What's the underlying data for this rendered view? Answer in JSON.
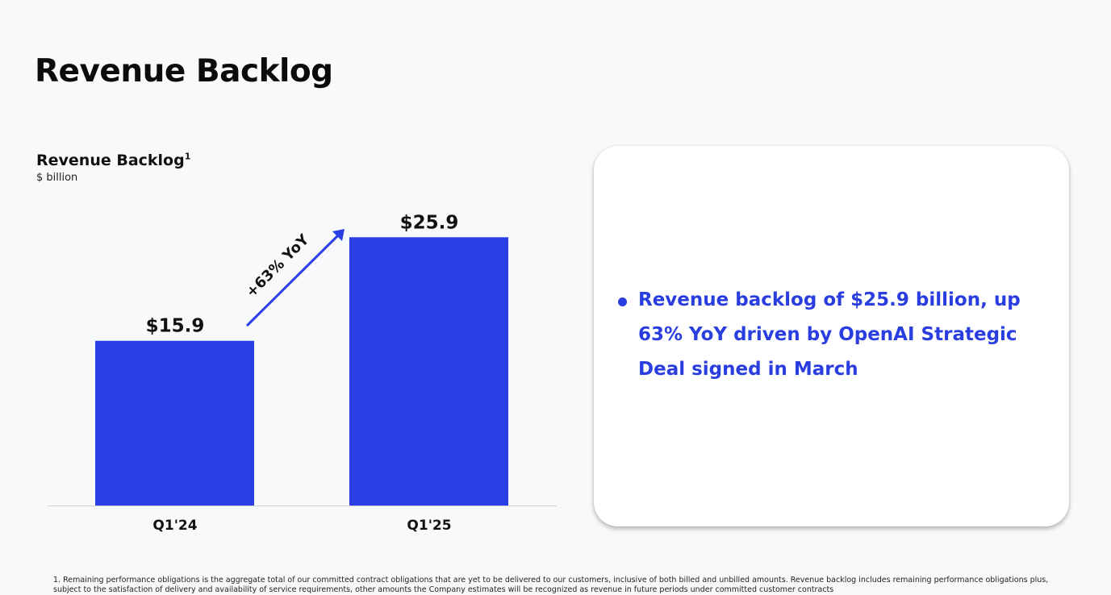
{
  "page": {
    "title": "Revenue Backlog"
  },
  "chart_data": {
    "type": "bar",
    "title": "Revenue Backlog",
    "title_footnote_marker": "1",
    "subtitle": "$ billion",
    "categories": [
      "Q1'24",
      "Q1'25"
    ],
    "values": [
      15.9,
      25.9
    ],
    "data_labels": [
      "$15.9",
      "$25.9"
    ],
    "annotation": "+63% YoY",
    "ylim": [
      0,
      28.8
    ],
    "bar_color": "#2a3fe6",
    "arrow_color": "#2a3fe6",
    "grid": false,
    "legend": "none"
  },
  "callout": {
    "bullets": [
      "Revenue backlog of $25.9 billion, up 63% YoY driven by OpenAI Strategic Deal signed in March"
    ],
    "text_color": "#2a3ee0"
  },
  "footnote": {
    "text": "1. Remaining performance obligations is the aggregate total of our committed contract obligations that are yet to be delivered to our customers, inclusive of both billed and unbilled amounts. Revenue backlog includes remaining performance obligations plus, subject to the satisfaction of delivery and availability of service requirements, other amounts the Company estimates will be recognized as revenue in future periods under committed customer contracts"
  }
}
